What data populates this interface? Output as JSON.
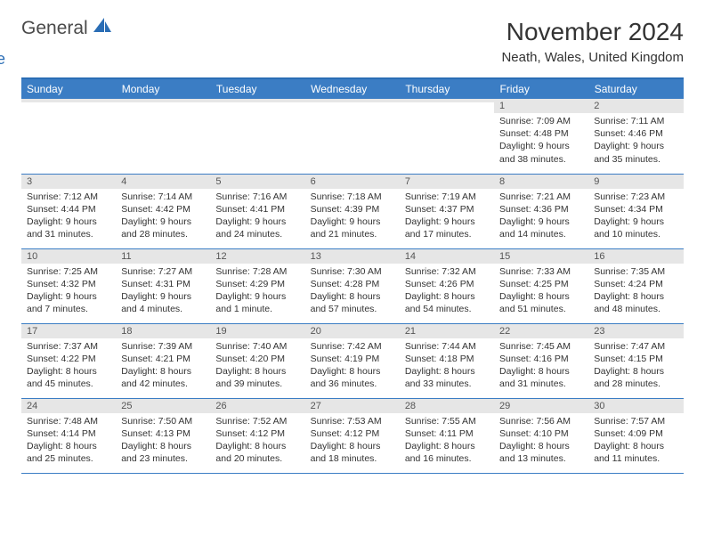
{
  "logo": {
    "text_general": "General",
    "text_blue": "Blue"
  },
  "header": {
    "month_title": "November 2024",
    "location": "Neath, Wales, United Kingdom"
  },
  "colors": {
    "header_bg": "#3b7dc4",
    "header_text": "#ffffff",
    "daynum_bg": "#e6e6e6",
    "border": "#2a6db5",
    "text": "#333333",
    "logo_gray": "#4a4a4a",
    "logo_blue": "#2a6db5"
  },
  "weekdays": [
    "Sunday",
    "Monday",
    "Tuesday",
    "Wednesday",
    "Thursday",
    "Friday",
    "Saturday"
  ],
  "weeks": [
    [
      {
        "day": "",
        "lines": []
      },
      {
        "day": "",
        "lines": []
      },
      {
        "day": "",
        "lines": []
      },
      {
        "day": "",
        "lines": []
      },
      {
        "day": "",
        "lines": []
      },
      {
        "day": "1",
        "lines": [
          "Sunrise: 7:09 AM",
          "Sunset: 4:48 PM",
          "Daylight: 9 hours",
          "and 38 minutes."
        ]
      },
      {
        "day": "2",
        "lines": [
          "Sunrise: 7:11 AM",
          "Sunset: 4:46 PM",
          "Daylight: 9 hours",
          "and 35 minutes."
        ]
      }
    ],
    [
      {
        "day": "3",
        "lines": [
          "Sunrise: 7:12 AM",
          "Sunset: 4:44 PM",
          "Daylight: 9 hours",
          "and 31 minutes."
        ]
      },
      {
        "day": "4",
        "lines": [
          "Sunrise: 7:14 AM",
          "Sunset: 4:42 PM",
          "Daylight: 9 hours",
          "and 28 minutes."
        ]
      },
      {
        "day": "5",
        "lines": [
          "Sunrise: 7:16 AM",
          "Sunset: 4:41 PM",
          "Daylight: 9 hours",
          "and 24 minutes."
        ]
      },
      {
        "day": "6",
        "lines": [
          "Sunrise: 7:18 AM",
          "Sunset: 4:39 PM",
          "Daylight: 9 hours",
          "and 21 minutes."
        ]
      },
      {
        "day": "7",
        "lines": [
          "Sunrise: 7:19 AM",
          "Sunset: 4:37 PM",
          "Daylight: 9 hours",
          "and 17 minutes."
        ]
      },
      {
        "day": "8",
        "lines": [
          "Sunrise: 7:21 AM",
          "Sunset: 4:36 PM",
          "Daylight: 9 hours",
          "and 14 minutes."
        ]
      },
      {
        "day": "9",
        "lines": [
          "Sunrise: 7:23 AM",
          "Sunset: 4:34 PM",
          "Daylight: 9 hours",
          "and 10 minutes."
        ]
      }
    ],
    [
      {
        "day": "10",
        "lines": [
          "Sunrise: 7:25 AM",
          "Sunset: 4:32 PM",
          "Daylight: 9 hours",
          "and 7 minutes."
        ]
      },
      {
        "day": "11",
        "lines": [
          "Sunrise: 7:27 AM",
          "Sunset: 4:31 PM",
          "Daylight: 9 hours",
          "and 4 minutes."
        ]
      },
      {
        "day": "12",
        "lines": [
          "Sunrise: 7:28 AM",
          "Sunset: 4:29 PM",
          "Daylight: 9 hours",
          "and 1 minute."
        ]
      },
      {
        "day": "13",
        "lines": [
          "Sunrise: 7:30 AM",
          "Sunset: 4:28 PM",
          "Daylight: 8 hours",
          "and 57 minutes."
        ]
      },
      {
        "day": "14",
        "lines": [
          "Sunrise: 7:32 AM",
          "Sunset: 4:26 PM",
          "Daylight: 8 hours",
          "and 54 minutes."
        ]
      },
      {
        "day": "15",
        "lines": [
          "Sunrise: 7:33 AM",
          "Sunset: 4:25 PM",
          "Daylight: 8 hours",
          "and 51 minutes."
        ]
      },
      {
        "day": "16",
        "lines": [
          "Sunrise: 7:35 AM",
          "Sunset: 4:24 PM",
          "Daylight: 8 hours",
          "and 48 minutes."
        ]
      }
    ],
    [
      {
        "day": "17",
        "lines": [
          "Sunrise: 7:37 AM",
          "Sunset: 4:22 PM",
          "Daylight: 8 hours",
          "and 45 minutes."
        ]
      },
      {
        "day": "18",
        "lines": [
          "Sunrise: 7:39 AM",
          "Sunset: 4:21 PM",
          "Daylight: 8 hours",
          "and 42 minutes."
        ]
      },
      {
        "day": "19",
        "lines": [
          "Sunrise: 7:40 AM",
          "Sunset: 4:20 PM",
          "Daylight: 8 hours",
          "and 39 minutes."
        ]
      },
      {
        "day": "20",
        "lines": [
          "Sunrise: 7:42 AM",
          "Sunset: 4:19 PM",
          "Daylight: 8 hours",
          "and 36 minutes."
        ]
      },
      {
        "day": "21",
        "lines": [
          "Sunrise: 7:44 AM",
          "Sunset: 4:18 PM",
          "Daylight: 8 hours",
          "and 33 minutes."
        ]
      },
      {
        "day": "22",
        "lines": [
          "Sunrise: 7:45 AM",
          "Sunset: 4:16 PM",
          "Daylight: 8 hours",
          "and 31 minutes."
        ]
      },
      {
        "day": "23",
        "lines": [
          "Sunrise: 7:47 AM",
          "Sunset: 4:15 PM",
          "Daylight: 8 hours",
          "and 28 minutes."
        ]
      }
    ],
    [
      {
        "day": "24",
        "lines": [
          "Sunrise: 7:48 AM",
          "Sunset: 4:14 PM",
          "Daylight: 8 hours",
          "and 25 minutes."
        ]
      },
      {
        "day": "25",
        "lines": [
          "Sunrise: 7:50 AM",
          "Sunset: 4:13 PM",
          "Daylight: 8 hours",
          "and 23 minutes."
        ]
      },
      {
        "day": "26",
        "lines": [
          "Sunrise: 7:52 AM",
          "Sunset: 4:12 PM",
          "Daylight: 8 hours",
          "and 20 minutes."
        ]
      },
      {
        "day": "27",
        "lines": [
          "Sunrise: 7:53 AM",
          "Sunset: 4:12 PM",
          "Daylight: 8 hours",
          "and 18 minutes."
        ]
      },
      {
        "day": "28",
        "lines": [
          "Sunrise: 7:55 AM",
          "Sunset: 4:11 PM",
          "Daylight: 8 hours",
          "and 16 minutes."
        ]
      },
      {
        "day": "29",
        "lines": [
          "Sunrise: 7:56 AM",
          "Sunset: 4:10 PM",
          "Daylight: 8 hours",
          "and 13 minutes."
        ]
      },
      {
        "day": "30",
        "lines": [
          "Sunrise: 7:57 AM",
          "Sunset: 4:09 PM",
          "Daylight: 8 hours",
          "and 11 minutes."
        ]
      }
    ]
  ]
}
